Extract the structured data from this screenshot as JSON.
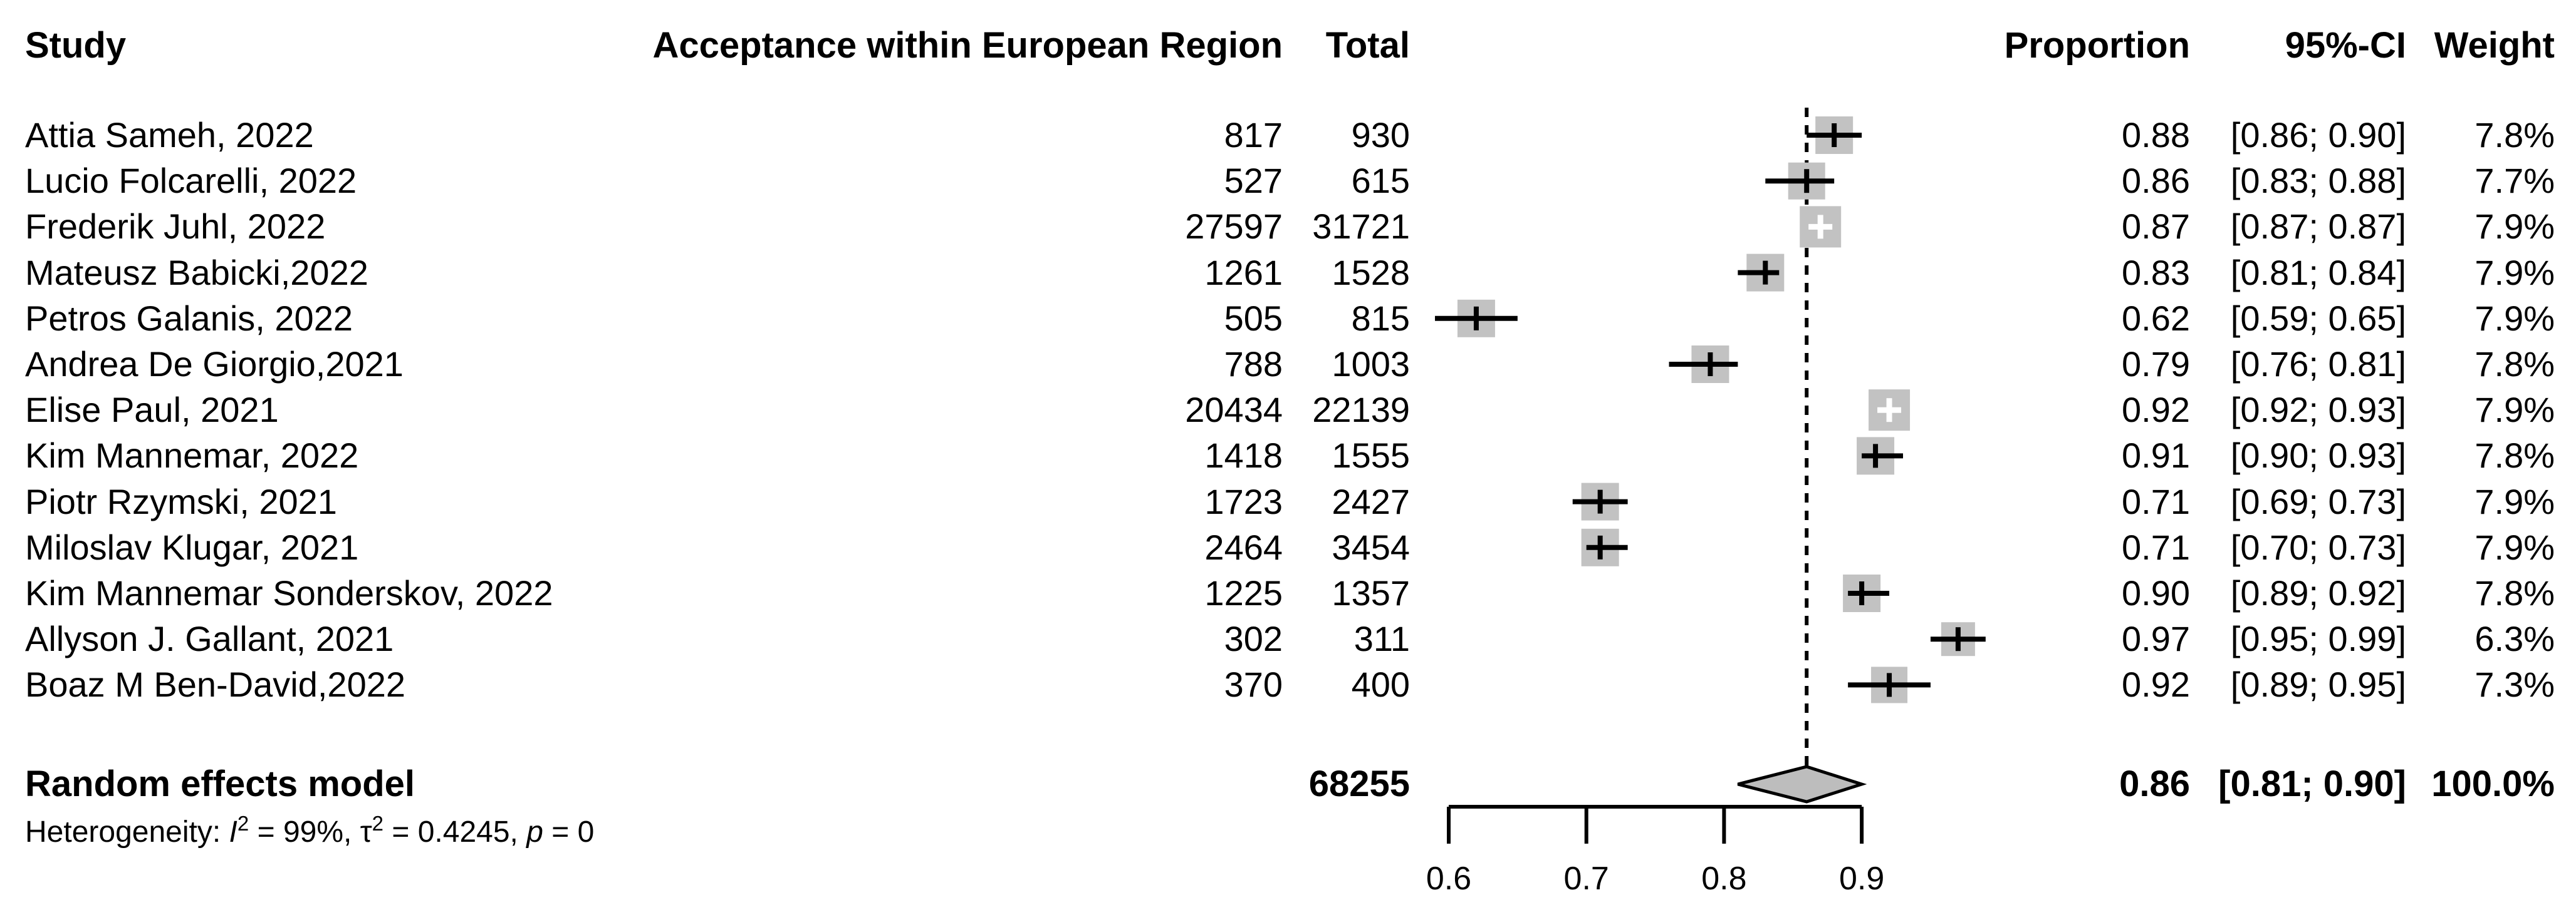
{
  "header": {
    "study": "Study",
    "events": "Acceptance within European Region",
    "total": "Total",
    "proportion": "Proportion",
    "ci": "95%-CI",
    "weight": "Weight"
  },
  "chart_data": {
    "type": "forest",
    "title": "Acceptance within European Region",
    "x_axis": {
      "axis_range": [
        0.6,
        0.9
      ],
      "ticks": [
        {
          "value": 0.6,
          "label": "0.6"
        },
        {
          "value": 0.7,
          "label": "0.7"
        },
        {
          "value": 0.8,
          "label": "0.8"
        },
        {
          "value": 0.9,
          "label": "0.9"
        }
      ]
    },
    "reference_line": 0.86,
    "studies": [
      {
        "name": "Attia Sameh, 2022",
        "events": "817",
        "total": "930",
        "estimate": 0.88,
        "ci_low": 0.86,
        "ci_high": 0.9,
        "proportion": "0.88",
        "ci": "[0.86; 0.90]",
        "weight": "7.8%",
        "ci_within_square": false
      },
      {
        "name": "Lucio Folcarelli, 2022",
        "events": "527",
        "total": "615",
        "estimate": 0.86,
        "ci_low": 0.83,
        "ci_high": 0.88,
        "proportion": "0.86",
        "ci": "[0.83; 0.88]",
        "weight": "7.7%",
        "ci_within_square": false
      },
      {
        "name": "Frederik Juhl, 2022",
        "events": "27597",
        "total": "31721",
        "estimate": 0.87,
        "ci_low": 0.87,
        "ci_high": 0.87,
        "proportion": "0.87",
        "ci": "[0.87; 0.87]",
        "weight": "7.9%",
        "ci_within_square": true
      },
      {
        "name": "Mateusz Babicki,2022",
        "events": "1261",
        "total": "1528",
        "estimate": 0.83,
        "ci_low": 0.81,
        "ci_high": 0.84,
        "proportion": "0.83",
        "ci": "[0.81; 0.84]",
        "weight": "7.9%",
        "ci_within_square": false
      },
      {
        "name": "Petros Galanis, 2022",
        "events": "505",
        "total": "815",
        "estimate": 0.62,
        "ci_low": 0.59,
        "ci_high": 0.65,
        "proportion": "0.62",
        "ci": "[0.59; 0.65]",
        "weight": "7.9%",
        "ci_within_square": false
      },
      {
        "name": "Andrea De Giorgio,2021",
        "events": "788",
        "total": "1003",
        "estimate": 0.79,
        "ci_low": 0.76,
        "ci_high": 0.81,
        "proportion": "0.79",
        "ci": "[0.76; 0.81]",
        "weight": "7.8%",
        "ci_within_square": false
      },
      {
        "name": "Elise Paul, 2021",
        "events": "20434",
        "total": "22139",
        "estimate": 0.92,
        "ci_low": 0.92,
        "ci_high": 0.93,
        "proportion": "0.92",
        "ci": "[0.92; 0.93]",
        "weight": "7.9%",
        "ci_within_square": true
      },
      {
        "name": "Kim Mannemar, 2022",
        "events": "1418",
        "total": "1555",
        "estimate": 0.91,
        "ci_low": 0.9,
        "ci_high": 0.93,
        "proportion": "0.91",
        "ci": "[0.90; 0.93]",
        "weight": "7.8%",
        "ci_within_square": false
      },
      {
        "name": "Piotr Rzymski, 2021",
        "events": "1723",
        "total": "2427",
        "estimate": 0.71,
        "ci_low": 0.69,
        "ci_high": 0.73,
        "proportion": "0.71",
        "ci": "[0.69; 0.73]",
        "weight": "7.9%",
        "ci_within_square": false
      },
      {
        "name": "Miloslav Klugar, 2021",
        "events": "2464",
        "total": "3454",
        "estimate": 0.71,
        "ci_low": 0.7,
        "ci_high": 0.73,
        "proportion": "0.71",
        "ci": "[0.70; 0.73]",
        "weight": "7.9%",
        "ci_within_square": false
      },
      {
        "name": "Kim Mannemar Sonderskov, 2022",
        "events": "1225",
        "total": "1357",
        "estimate": 0.9,
        "ci_low": 0.89,
        "ci_high": 0.92,
        "proportion": "0.90",
        "ci": "[0.89; 0.92]",
        "weight": "7.8%",
        "ci_within_square": false
      },
      {
        "name": "Allyson J. Gallant, 2021",
        "events": "302",
        "total": "311",
        "estimate": 0.97,
        "ci_low": 0.95,
        "ci_high": 0.99,
        "proportion": "0.97",
        "ci": "[0.95; 0.99]",
        "weight": "6.3%",
        "ci_within_square": false
      },
      {
        "name": "Boaz M Ben-David,2022",
        "events": "370",
        "total": "400",
        "estimate": 0.92,
        "ci_low": 0.89,
        "ci_high": 0.95,
        "proportion": "0.92",
        "ci": "[0.89; 0.95]",
        "weight": "7.3%",
        "ci_within_square": false
      }
    ],
    "pooled": {
      "label": "Random effects model",
      "total": "68255",
      "estimate": 0.86,
      "ci_low": 0.81,
      "ci_high": 0.9,
      "proportion": "0.86",
      "ci": "[0.81; 0.90]",
      "weight": "100.0%"
    },
    "heterogeneity": {
      "prefix": "Heterogeneity: ",
      "i_sym": "I",
      "i_sup": "2",
      "i_eq": " = 99%, ",
      "tau_sym": "τ",
      "tau_sup": "2",
      "tau_eq": " = 0.4245, ",
      "p_sym": "p",
      "p_eq": " = 0"
    },
    "colors": {
      "square_fill": "#c2c2c2",
      "diamond_fill": "#bdbdbd",
      "line": "#000000"
    }
  }
}
